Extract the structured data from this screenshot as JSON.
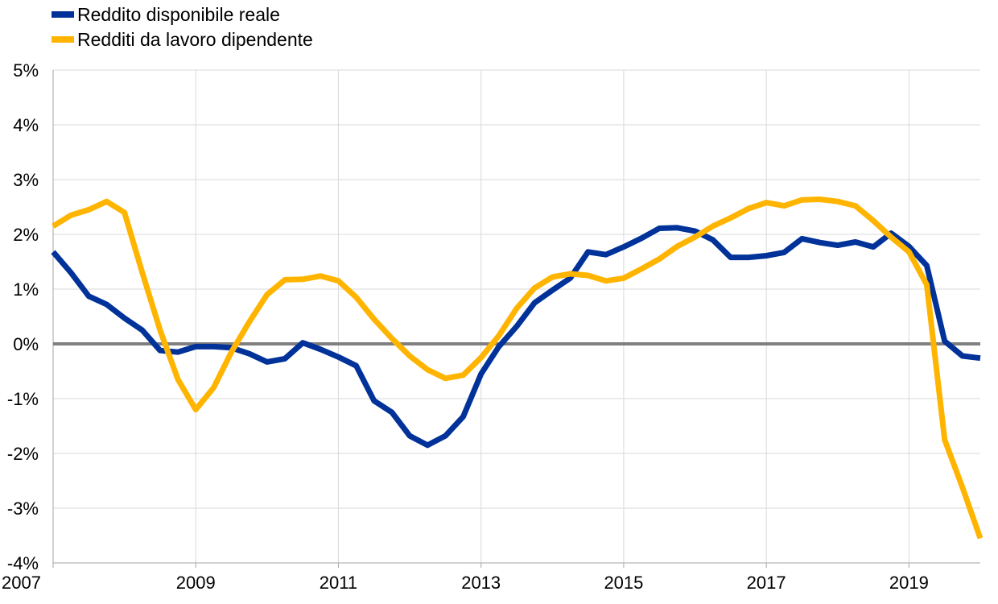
{
  "chart_data": {
    "type": "line",
    "title": "",
    "xlabel": "",
    "ylabel": "",
    "x_ticks": [
      "2007",
      "2009",
      "2011",
      "2013",
      "2015",
      "2017",
      "2019"
    ],
    "y_ticks": [
      "-4%",
      "-3%",
      "-2%",
      "-1%",
      "0%",
      "1%",
      "2%",
      "3%",
      "4%",
      "5%"
    ],
    "xlim": [
      2007,
      2020
    ],
    "ylim": [
      -4,
      5
    ],
    "grid": true,
    "zero_line": true,
    "legend_position": "top-left",
    "series": [
      {
        "name": "Reddito disponibile reale",
        "color": "#003299",
        "x": [
          2007.0,
          2007.25,
          2007.5,
          2007.75,
          2008.0,
          2008.25,
          2008.5,
          2008.75,
          2009.0,
          2009.25,
          2009.5,
          2009.75,
          2010.0,
          2010.25,
          2010.5,
          2010.75,
          2011.0,
          2011.25,
          2011.5,
          2011.75,
          2012.0,
          2012.25,
          2012.5,
          2012.75,
          2013.0,
          2013.25,
          2013.5,
          2013.75,
          2014.0,
          2014.25,
          2014.5,
          2014.75,
          2015.0,
          2015.25,
          2015.5,
          2015.75,
          2016.0,
          2016.25,
          2016.5,
          2016.75,
          2017.0,
          2017.25,
          2017.5,
          2017.75,
          2018.0,
          2018.25,
          2018.5,
          2018.75,
          2019.0,
          2019.25,
          2019.5,
          2019.75,
          2020.0
        ],
        "values": [
          1.68,
          1.3,
          0.87,
          0.72,
          0.47,
          0.25,
          -0.12,
          -0.15,
          -0.05,
          -0.05,
          -0.07,
          -0.18,
          -0.33,
          -0.27,
          0.02,
          -0.1,
          -0.24,
          -0.4,
          -1.04,
          -1.25,
          -1.68,
          -1.85,
          -1.68,
          -1.33,
          -0.55,
          -0.05,
          0.32,
          0.75,
          0.98,
          1.2,
          1.68,
          1.63,
          1.77,
          1.93,
          2.11,
          2.12,
          2.06,
          1.9,
          1.58,
          1.58,
          1.61,
          1.67,
          1.92,
          1.85,
          1.8,
          1.86,
          1.77,
          2.02,
          1.78,
          1.43,
          0.05,
          -0.22,
          -0.26
        ]
      },
      {
        "name": "Redditi da lavoro dipendente",
        "color": "#FFB400",
        "x": [
          2007.0,
          2007.25,
          2007.5,
          2007.75,
          2008.0,
          2008.25,
          2008.5,
          2008.75,
          2009.0,
          2009.25,
          2009.5,
          2009.75,
          2010.0,
          2010.25,
          2010.5,
          2010.75,
          2011.0,
          2011.25,
          2011.5,
          2011.75,
          2012.0,
          2012.25,
          2012.5,
          2012.75,
          2013.0,
          2013.25,
          2013.5,
          2013.75,
          2014.0,
          2014.25,
          2014.5,
          2014.75,
          2015.0,
          2015.25,
          2015.5,
          2015.75,
          2016.0,
          2016.25,
          2016.5,
          2016.75,
          2017.0,
          2017.25,
          2017.5,
          2017.75,
          2018.0,
          2018.25,
          2018.5,
          2018.75,
          2019.0,
          2019.25,
          2019.5,
          2019.75,
          2020.0
        ],
        "values": [
          2.15,
          2.35,
          2.45,
          2.6,
          2.4,
          1.3,
          0.25,
          -0.65,
          -1.2,
          -0.8,
          -0.15,
          0.4,
          0.9,
          1.17,
          1.18,
          1.24,
          1.15,
          0.85,
          0.45,
          0.1,
          -0.22,
          -0.47,
          -0.63,
          -0.57,
          -0.25,
          0.15,
          0.65,
          1.02,
          1.22,
          1.28,
          1.25,
          1.15,
          1.2,
          1.37,
          1.55,
          1.78,
          1.95,
          2.15,
          2.3,
          2.47,
          2.58,
          2.52,
          2.63,
          2.64,
          2.6,
          2.52,
          2.25,
          1.95,
          1.68,
          1.08,
          -1.75,
          -2.62,
          -3.55
        ]
      }
    ]
  }
}
